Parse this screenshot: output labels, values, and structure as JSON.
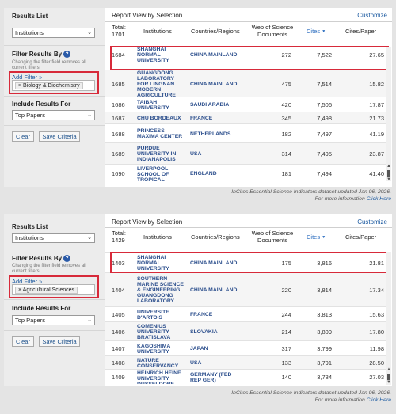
{
  "panels": [
    {
      "sidebar": {
        "results_list_label": "Results List",
        "results_list_value": "Institutions",
        "filter_label": "Filter Results By",
        "help_glyph": "?",
        "filter_note": "Changing the filter field removes all current filters.",
        "add_filter": "Add Filter »",
        "filter_tag": "× Biology & Biochemistry",
        "include_label": "Include Results For",
        "include_value": "Top Papers",
        "clear_button": "Clear",
        "save_button": "Save Criteria"
      },
      "main": {
        "title": "Report View by Selection",
        "customize": "Customize",
        "total_label": "Total:",
        "total_value": "1701",
        "headers": {
          "institutions": "Institutions",
          "countries": "Countries/Regions",
          "wos": "Web of Science Documents",
          "cites": "Cites",
          "cpp": "Cites/Paper"
        },
        "rows": [
          {
            "rank": "1684",
            "inst": "SHANGHAI NORMAL UNIVERSITY",
            "country": "CHINA MAINLAND",
            "wos": "272",
            "cites": "7,522",
            "cpp": "27.65"
          },
          {
            "rank": "1685",
            "inst": "GUANGDONG LABORATORY FOR LINGNAN MODERN AGRICULTURE",
            "country": "CHINA MAINLAND",
            "wos": "475",
            "cites": "7,514",
            "cpp": "15.82"
          },
          {
            "rank": "1686",
            "inst": "TAIBAH UNIVERSITY",
            "country": "SAUDI ARABIA",
            "wos": "420",
            "cites": "7,506",
            "cpp": "17.87"
          },
          {
            "rank": "1687",
            "inst": "CHU BORDEAUX",
            "country": "FRANCE",
            "wos": "345",
            "cites": "7,498",
            "cpp": "21.73"
          },
          {
            "rank": "1688",
            "inst": "PRINCESS MAXIMA CENTER",
            "country": "NETHERLANDS",
            "wos": "182",
            "cites": "7,497",
            "cpp": "41.19"
          },
          {
            "rank": "1689",
            "inst": "PURDUE UNIVERSITY IN INDIANAPOLIS",
            "country": "USA",
            "wos": "314",
            "cites": "7,495",
            "cpp": "23.87"
          },
          {
            "rank": "1690",
            "inst": "LIVERPOOL SCHOOL OF TROPICAL",
            "country": "ENGLAND",
            "wos": "181",
            "cites": "7,494",
            "cpp": "41.40"
          }
        ]
      },
      "footer_line1": "InCites Essential Science Indicators dataset updated Jan 06, 2026.",
      "footer_line2_prefix": "For more information",
      "footer_link": "Click Here"
    },
    {
      "sidebar": {
        "results_list_label": "Results List",
        "results_list_value": "Institutions",
        "filter_label": "Filter Results By",
        "help_glyph": "?",
        "filter_note": "Changing the filter field removes all current filters.",
        "add_filter": "Add Filter »",
        "filter_tag": "× Agricultural Sciences",
        "include_label": "Include Results For",
        "include_value": "Top Papers",
        "clear_button": "Clear",
        "save_button": "Save Criteria"
      },
      "main": {
        "title": "Report View by Selection",
        "customize": "Customize",
        "total_label": "Total:",
        "total_value": "1429",
        "headers": {
          "institutions": "Institutions",
          "countries": "Countries/Regions",
          "wos": "Web of Science Documents",
          "cites": "Cites",
          "cpp": "Cites/Paper"
        },
        "rows": [
          {
            "rank": "1403",
            "inst": "SHANGHAI NORMAL UNIVERSITY",
            "country": "CHINA MAINLAND",
            "wos": "175",
            "cites": "3,816",
            "cpp": "21.81"
          },
          {
            "rank": "1404",
            "inst": "SOUTHERN MARINE SCIENCE & ENGINEERING GUANGDONG LABORATORY",
            "country": "CHINA MAINLAND",
            "wos": "220",
            "cites": "3,814",
            "cpp": "17.34"
          },
          {
            "rank": "1405",
            "inst": "UNIVERSITE D'ARTOIS",
            "country": "FRANCE",
            "wos": "244",
            "cites": "3,813",
            "cpp": "15.63"
          },
          {
            "rank": "1406",
            "inst": "COMENIUS UNIVERSITY BRATISLAVA",
            "country": "SLOVAKIA",
            "wos": "214",
            "cites": "3,809",
            "cpp": "17.80"
          },
          {
            "rank": "1407",
            "inst": "KAGOSHIMA UNIVERSITY",
            "country": "JAPAN",
            "wos": "317",
            "cites": "3,799",
            "cpp": "11.98"
          },
          {
            "rank": "1408",
            "inst": "NATURE CONSERVANCY",
            "country": "USA",
            "wos": "133",
            "cites": "3,791",
            "cpp": "28.50"
          },
          {
            "rank": "1409",
            "inst": "HEINRICH HEINE UNIVERSITY DUSSELDORF",
            "country": "GERMANY (FED REP GER)",
            "wos": "140",
            "cites": "3,784",
            "cpp": "27.03"
          }
        ]
      },
      "footer_line1": "InCites Essential Science Indicators dataset updated Jan 06, 2026.",
      "footer_line2_prefix": "For more information",
      "footer_link": "Click Here"
    }
  ],
  "icons": {
    "select_chevron": "chevron-down-icon",
    "help": "help-icon",
    "sort_arrow": "sort-desc-icon"
  },
  "colors": {
    "highlight_box": "#d72a3a",
    "link": "#1c5aa0",
    "sorted_header": "#2a6cbf"
  }
}
